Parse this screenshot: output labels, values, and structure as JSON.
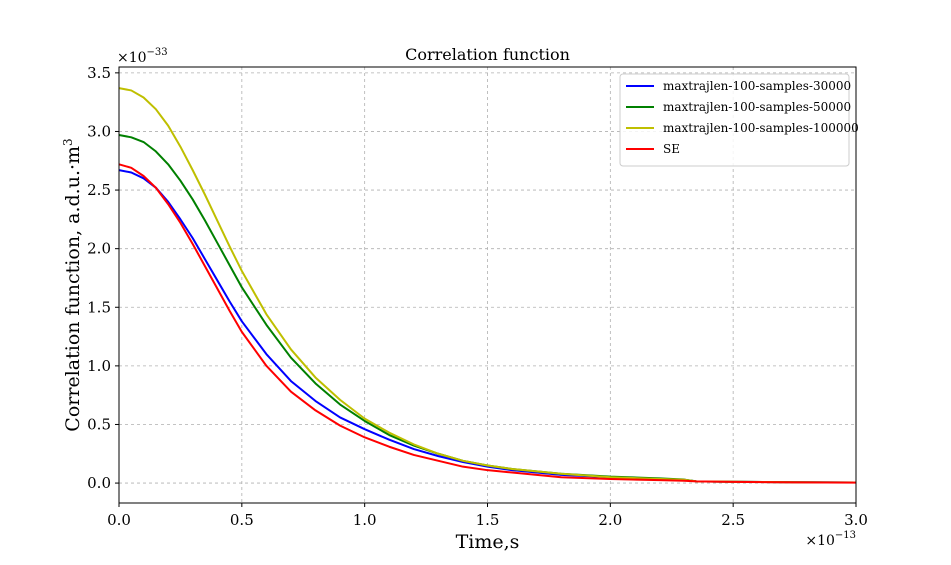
{
  "chart_data": {
    "type": "line",
    "title": "Correlation function",
    "xlabel": "Time,s",
    "ylabel_main": "Correlation function, a.d.u.·m",
    "ylabel_sup": "3",
    "x_multiplier_base": "×10",
    "x_multiplier_exp": "−13",
    "y_multiplier_base": "×10",
    "y_multiplier_exp": "−33",
    "xlim": [
      0,
      3.0
    ],
    "ylim": [
      -0.17,
      3.55
    ],
    "xticks": [
      0.0,
      0.5,
      1.0,
      1.5,
      2.0,
      2.5,
      3.0
    ],
    "xtick_labels": [
      "0.0",
      "0.5",
      "1.0",
      "1.5",
      "2.0",
      "2.5",
      "3.0"
    ],
    "yticks": [
      0.0,
      0.5,
      1.0,
      1.5,
      2.0,
      2.5,
      3.0,
      3.5
    ],
    "ytick_labels": [
      "0.0",
      "0.5",
      "1.0",
      "1.5",
      "2.0",
      "2.5",
      "3.0",
      "3.5"
    ],
    "grid": true,
    "legend_position": "top-right",
    "x": [
      0.0,
      0.05,
      0.1,
      0.15,
      0.2,
      0.25,
      0.3,
      0.35,
      0.4,
      0.45,
      0.5,
      0.6,
      0.7,
      0.8,
      0.9,
      1.0,
      1.1,
      1.2,
      1.3,
      1.4,
      1.5,
      1.6,
      1.8,
      2.0,
      2.2,
      2.3,
      2.35,
      2.5,
      2.75,
      3.0
    ],
    "series": [
      {
        "name": "maxtrajlen-100-samples-30000",
        "color": "#0000ff",
        "values": [
          2.67,
          2.65,
          2.6,
          2.52,
          2.4,
          2.25,
          2.09,
          1.91,
          1.73,
          1.55,
          1.38,
          1.1,
          0.87,
          0.7,
          0.56,
          0.46,
          0.37,
          0.29,
          0.23,
          0.18,
          0.14,
          0.11,
          0.07,
          0.05,
          0.035,
          0.028,
          0.015,
          0.011,
          0.007,
          0.005
        ]
      },
      {
        "name": "maxtrajlen-100-samples-50000",
        "color": "#008000",
        "values": [
          2.97,
          2.95,
          2.91,
          2.83,
          2.72,
          2.58,
          2.42,
          2.24,
          2.05,
          1.86,
          1.67,
          1.35,
          1.07,
          0.85,
          0.67,
          0.53,
          0.41,
          0.32,
          0.25,
          0.19,
          0.15,
          0.12,
          0.08,
          0.055,
          0.04,
          0.03,
          0.015,
          0.011,
          0.007,
          0.005
        ]
      },
      {
        "name": "maxtrajlen-100-samples-100000",
        "color": "#bfbf00",
        "values": [
          3.37,
          3.35,
          3.29,
          3.19,
          3.05,
          2.87,
          2.67,
          2.46,
          2.24,
          2.02,
          1.81,
          1.44,
          1.14,
          0.9,
          0.71,
          0.55,
          0.43,
          0.33,
          0.25,
          0.19,
          0.15,
          0.12,
          0.08,
          0.05,
          0.035,
          0.028,
          0.015,
          0.011,
          0.007,
          0.005
        ]
      },
      {
        "name": "SE",
        "color": "#ff0000",
        "values": [
          2.72,
          2.69,
          2.62,
          2.52,
          2.38,
          2.22,
          2.04,
          1.85,
          1.66,
          1.47,
          1.29,
          1.0,
          0.78,
          0.62,
          0.49,
          0.39,
          0.31,
          0.24,
          0.19,
          0.14,
          0.11,
          0.09,
          0.05,
          0.035,
          0.025,
          0.02,
          0.015,
          0.01,
          0.006,
          0.004
        ]
      }
    ]
  }
}
